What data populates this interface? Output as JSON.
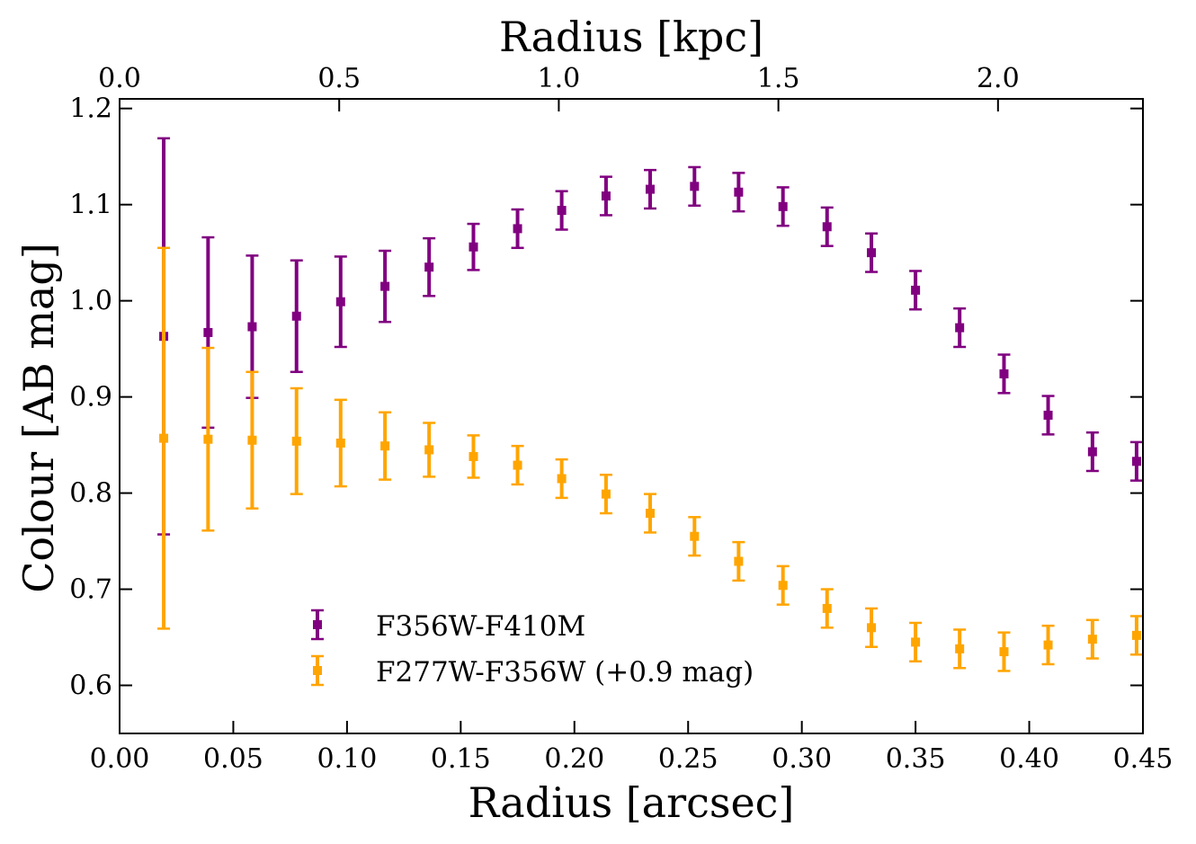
{
  "chart_data": {
    "type": "scatter",
    "title": "",
    "xlabel": "Radius [arcsec]",
    "ylabel": "Colour [AB mag]",
    "x2label": "Radius [kpc]",
    "xlim": [
      0.0,
      0.45
    ],
    "ylim": [
      0.55,
      1.21
    ],
    "x2lim": [
      0.0,
      2.33
    ],
    "xticks": [
      0.0,
      0.05,
      0.1,
      0.15,
      0.2,
      0.25,
      0.3,
      0.35,
      0.4,
      0.45
    ],
    "xtick_labels": [
      "0.00",
      "0.05",
      "0.10",
      "0.15",
      "0.20",
      "0.25",
      "0.30",
      "0.35",
      "0.40",
      "0.45"
    ],
    "yticks": [
      0.6,
      0.7,
      0.8,
      0.9,
      1.0,
      1.1,
      1.2
    ],
    "ytick_labels": [
      "0.6",
      "0.7",
      "0.8",
      "0.9",
      "1.0",
      "1.1",
      "1.2"
    ],
    "x2ticks": [
      0.0,
      0.5,
      1.0,
      1.5,
      2.0
    ],
    "x2tick_labels": [
      "0.0",
      "0.5",
      "1.0",
      "1.5",
      "2.0"
    ],
    "x": [
      0.0194,
      0.0389,
      0.0583,
      0.0778,
      0.0972,
      0.1167,
      0.1361,
      0.1556,
      0.175,
      0.1944,
      0.2139,
      0.2333,
      0.2528,
      0.2722,
      0.2917,
      0.3111,
      0.3306,
      0.35,
      0.3694,
      0.3889,
      0.4083,
      0.4278,
      0.4472
    ],
    "legend_position": "lower-left",
    "series": [
      {
        "name": "F356W-F410M",
        "color": "#800080",
        "values": [
          0.963,
          0.967,
          0.973,
          0.984,
          0.999,
          1.015,
          1.035,
          1.056,
          1.075,
          1.094,
          1.109,
          1.116,
          1.119,
          1.113,
          1.098,
          1.077,
          1.05,
          1.011,
          0.972,
          0.924,
          0.881,
          0.843,
          0.833
        ],
        "errors": [
          0.206,
          0.099,
          0.074,
          0.058,
          0.047,
          0.037,
          0.03,
          0.024,
          0.02,
          0.02,
          0.02,
          0.02,
          0.02,
          0.02,
          0.02,
          0.02,
          0.02,
          0.02,
          0.02,
          0.02,
          0.02,
          0.02,
          0.02
        ]
      },
      {
        "name": "F277W-F356W (+0.9 mag)",
        "color": "#FFA500",
        "values": [
          0.857,
          0.856,
          0.855,
          0.854,
          0.852,
          0.849,
          0.845,
          0.838,
          0.829,
          0.815,
          0.799,
          0.779,
          0.755,
          0.729,
          0.704,
          0.68,
          0.66,
          0.645,
          0.638,
          0.635,
          0.642,
          0.648,
          0.652
        ],
        "errors": [
          0.198,
          0.095,
          0.071,
          0.055,
          0.045,
          0.035,
          0.028,
          0.022,
          0.02,
          0.02,
          0.02,
          0.02,
          0.02,
          0.02,
          0.02,
          0.02,
          0.02,
          0.02,
          0.02,
          0.02,
          0.02,
          0.02,
          0.02
        ]
      }
    ]
  }
}
